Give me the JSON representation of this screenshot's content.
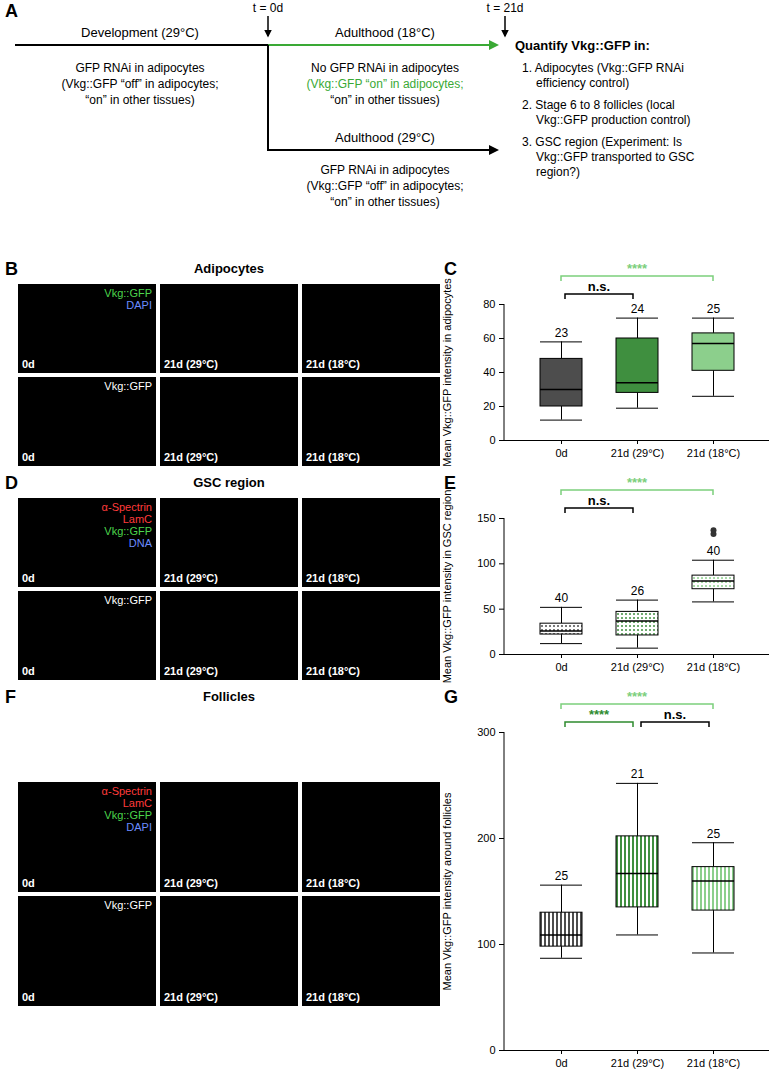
{
  "schematic": {
    "label": "A",
    "time_points": [
      "t = 0d",
      "t = 21d"
    ],
    "development": {
      "title": "Development (29°C)",
      "lines": [
        {
          "text": "GFP RNAi in adipocytes",
          "color": "#000000"
        },
        {
          "text": "(Vkg::GFP “off” in adipocytes;",
          "color": "#000000"
        },
        {
          "text": "“on” in other tissues)",
          "color": "#000000"
        }
      ]
    },
    "adulthood_18": {
      "title": "Adulthood (18°C)",
      "color": "#3aa935",
      "lines": [
        {
          "text": "No GFP RNAi in adipocytes",
          "color": "#000000"
        },
        {
          "text": "(Vkg::GFP “on” in adipocytes;",
          "color": "#3aa935"
        },
        {
          "text": "“on” in other tissues)",
          "color": "#000000"
        }
      ]
    },
    "adulthood_29": {
      "title": "Adulthood (29°C)",
      "lines": [
        {
          "text": "GFP RNAi in adipocytes",
          "color": "#000000"
        },
        {
          "text": "(Vkg::GFP “off” in adipocytes;",
          "color": "#000000"
        },
        {
          "text": "“on” in other tissues)",
          "color": "#000000"
        }
      ]
    },
    "quantify": {
      "title": "Quantify Vkg::GFP in:",
      "items": [
        [
          "1. Adipocytes (Vkg::GFP RNAi",
          "efficiency control)"
        ],
        [
          "2. Stage 6 to 8 follicles (local",
          "Vkg::GFP production control)"
        ],
        [
          "3. GSC region (Experiment: Is",
          "Vkg::GFP transported to GSC",
          "region?)"
        ]
      ]
    }
  },
  "images": [
    {
      "label": "B",
      "title": "Adipocytes",
      "channels": [
        {
          "text": "Vkg::GFP",
          "color": "#4cd44c"
        },
        {
          "text": "DAPI",
          "color": "#6b8cff"
        }
      ],
      "gray_channel": "Vkg::GFP",
      "conditions": [
        "0d",
        "21d (29°C)",
        "21d (18°C)"
      ]
    },
    {
      "label": "D",
      "title": "GSC region",
      "channels": [
        {
          "text": "α-Spectrin",
          "color": "#ff3b3b"
        },
        {
          "text": "LamC",
          "color": "#ff3b3b"
        },
        {
          "text": "Vkg::GFP",
          "color": "#4cd44c"
        },
        {
          "text": "DNA",
          "color": "#6b8cff"
        }
      ],
      "gray_channel": "Vkg::GFP",
      "conditions": [
        "0d",
        "21d (29°C)",
        "21d (18°C)"
      ]
    },
    {
      "label": "F",
      "title": "Follicles",
      "channels": [
        {
          "text": "α-Spectrin",
          "color": "#ff3b3b"
        },
        {
          "text": "LamC",
          "color": "#ff3b3b"
        },
        {
          "text": "Vkg::GFP",
          "color": "#4cd44c"
        },
        {
          "text": "DAPI",
          "color": "#6b8cff"
        }
      ],
      "gray_channel": "Vkg::GFP",
      "conditions": [
        "0d",
        "21d (29°C)",
        "21d (18°C)"
      ]
    }
  ],
  "chart_data": [
    {
      "type": "box",
      "label": "C",
      "ylabel": "Mean Vkg::GFP intensity in adipocytes",
      "categories": [
        "0d",
        "21d (29°C)",
        "21d (18°C)"
      ],
      "min": [
        12,
        19,
        26
      ],
      "q1": [
        20,
        28,
        41
      ],
      "median": [
        30,
        34,
        57
      ],
      "q3": [
        48,
        60,
        63
      ],
      "max": [
        58,
        72,
        72
      ],
      "outliers": [
        [],
        [],
        []
      ],
      "n": [
        23,
        24,
        25
      ],
      "colors": [
        "#4d4d4d",
        "#3f8f3f",
        "#8ccf8c"
      ],
      "ylim": [
        0,
        80
      ],
      "yticks": [
        0,
        20,
        40,
        60,
        80
      ],
      "annotations": [
        {
          "from": 0,
          "to": 1,
          "label": "n.s.",
          "color": "#000000"
        },
        {
          "from": 0,
          "to": 2,
          "label": "****",
          "color": "#7ccf7c"
        }
      ]
    },
    {
      "type": "box",
      "label": "E",
      "ylabel": "Mean Vkg::GFP intensity in GSC region",
      "categories": [
        "0d",
        "21d (29°C)",
        "21d (18°C)"
      ],
      "min": [
        12,
        7,
        58
      ],
      "q1": [
        22,
        21,
        72
      ],
      "median": [
        26,
        37,
        81
      ],
      "q3": [
        34,
        47,
        87
      ],
      "max": [
        52,
        60,
        104
      ],
      "outliers": [
        [],
        [],
        [
          133,
          137
        ]
      ],
      "n": [
        40,
        26,
        40
      ],
      "colors": [
        "#4d4d4d",
        "#3f8f3f",
        "#8ccf8c"
      ],
      "ylim": [
        0,
        150
      ],
      "yticks": [
        0,
        50,
        100,
        150
      ],
      "annotations": [
        {
          "from": 0,
          "to": 1,
          "label": "n.s.",
          "color": "#000000"
        },
        {
          "from": 0,
          "to": 2,
          "label": "****",
          "color": "#7ccf7c"
        }
      ]
    },
    {
      "type": "box",
      "label": "G",
      "ylabel": "Mean Vkg::GFP intensity around follicles",
      "categories": [
        "0d",
        "21d (29°C)",
        "21d (18°C)"
      ],
      "min": [
        87,
        109,
        92
      ],
      "q1": [
        98,
        135,
        132
      ],
      "median": [
        109,
        167,
        160
      ],
      "q3": [
        130,
        202,
        173
      ],
      "max": [
        156,
        252,
        196
      ],
      "outliers": [
        [],
        [],
        []
      ],
      "n": [
        25,
        21,
        25
      ],
      "colors": [
        "#4d4d4d",
        "#3f8f3f",
        "#8ccf8c"
      ],
      "ylim": [
        0,
        300
      ],
      "yticks": [
        0,
        100,
        200,
        300
      ],
      "annotations": [
        {
          "from": 0,
          "to": 1,
          "label": "****",
          "color": "#2e8b2e"
        },
        {
          "from": 1,
          "to": 2,
          "label": "n.s.",
          "color": "#000000"
        },
        {
          "from": 0,
          "to": 2,
          "label": "****",
          "color": "#7ccf7c"
        }
      ]
    }
  ]
}
